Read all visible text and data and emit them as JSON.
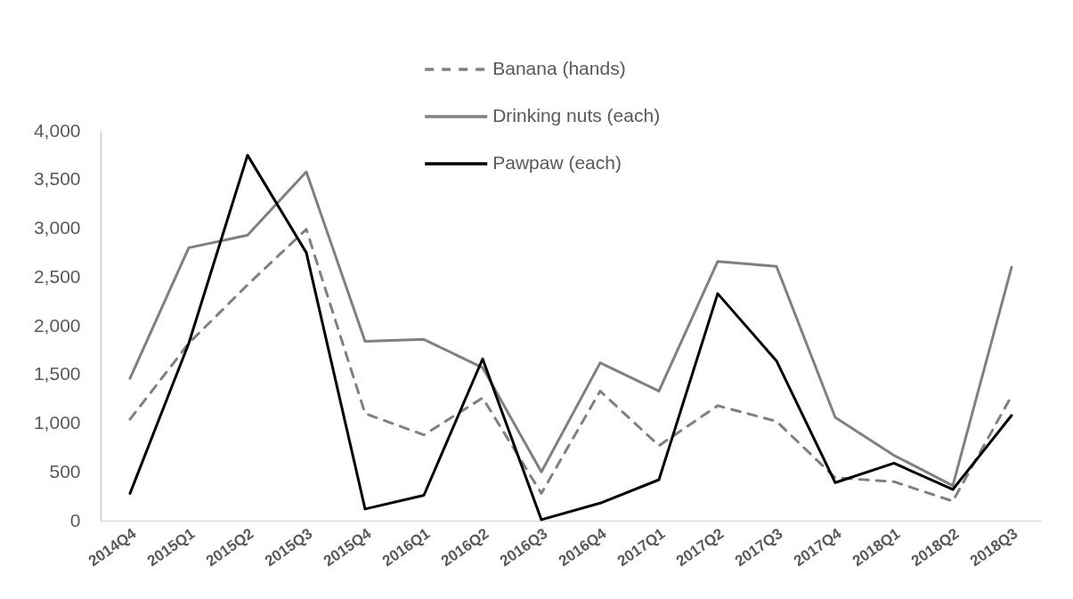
{
  "chart_data": {
    "type": "line",
    "categories": [
      "2014Q4",
      "2015Q1",
      "2015Q2",
      "2015Q3",
      "2015Q4",
      "2016Q1",
      "2016Q2",
      "2016Q3",
      "2016Q4",
      "2017Q1",
      "2017Q2",
      "2017Q3",
      "2017Q4",
      "2018Q1",
      "2018Q2",
      "2018Q3"
    ],
    "series": [
      {
        "name": "Banana (hands)",
        "color": "#808080",
        "line_style": "dashed",
        "values": [
          1040,
          1820,
          2420,
          2990,
          1100,
          880,
          1260,
          280,
          1330,
          770,
          1180,
          1020,
          440,
          400,
          200,
          1280
        ]
      },
      {
        "name": "Drinking nuts (each)",
        "color": "#808080",
        "values": [
          1460,
          2800,
          2930,
          3580,
          1840,
          1860,
          1570,
          500,
          1620,
          1330,
          2660,
          2610,
          1060,
          670,
          360,
          2600
        ]
      },
      {
        "name": "Pawpaw (each)",
        "color": "#000000",
        "values": [
          280,
          1820,
          3750,
          2750,
          120,
          260,
          1660,
          10,
          180,
          420,
          2330,
          1640,
          390,
          590,
          320,
          1080
        ]
      }
    ],
    "ylim": [
      0,
      4000
    ],
    "yticks": [
      0,
      500,
      {
        "value": 1000,
        "label": "1,000"
      },
      {
        "value": 1500,
        "label": "1,500"
      },
      {
        "value": 2000,
        "label": "2,000"
      },
      {
        "value": 2500,
        "label": "2,500"
      },
      {
        "value": 3000,
        "label": "3,000"
      },
      {
        "value": 3500,
        "label": "3,500"
      },
      {
        "value": 4000,
        "label": "4,000"
      }
    ],
    "legend": "top",
    "line_style": "solid"
  }
}
